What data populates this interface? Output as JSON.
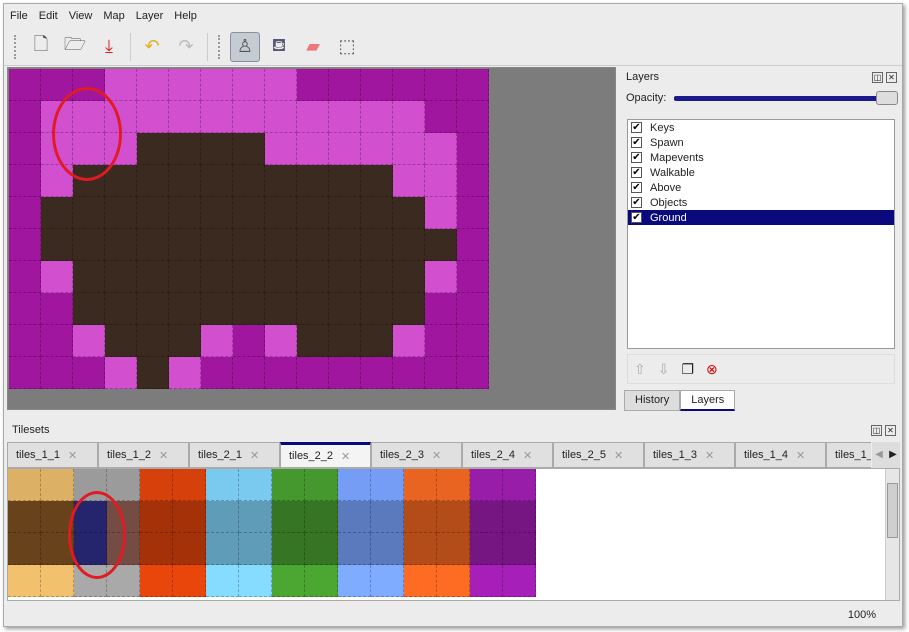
{
  "menu": [
    "File",
    "Edit",
    "View",
    "Map",
    "Layer",
    "Help"
  ],
  "toolbar": [
    {
      "name": "new-icon",
      "glyph": "🗋"
    },
    {
      "name": "open-icon",
      "glyph": "🗁"
    },
    {
      "name": "save-icon",
      "glyph": "⤓"
    },
    {
      "name": "undo-icon",
      "glyph": "↶"
    },
    {
      "name": "redo-icon",
      "glyph": "↷"
    },
    {
      "name": "stamp-brush-icon",
      "glyph": "♙",
      "active": true
    },
    {
      "name": "bucket-fill-icon",
      "glyph": "⛾"
    },
    {
      "name": "eraser-icon",
      "glyph": "▰"
    },
    {
      "name": "rect-select-icon",
      "glyph": "⬚"
    }
  ],
  "map": {
    "rows": [
      "DDDLLLLLLDDDDDD",
      "DLLLLLLLLLLLLDD",
      "DLLLBBBBLLLLLLD",
      "DLBBBBBBBBBBLLD",
      "DBBBBBBBBBBBBLD",
      "DBBBBBBBBBBBBBD",
      "DLBBBBBBBBBBBLD",
      "DDBBBBBBBBBBBDD",
      "DDLBBBLDLBBBLDD",
      "DDDLBLDDDDDDDDD"
    ]
  },
  "layers": {
    "title": "Layers",
    "opacity_label": "Opacity:",
    "opacity": 1.0,
    "items": [
      {
        "label": "Keys",
        "checked": true
      },
      {
        "label": "Spawn",
        "checked": true
      },
      {
        "label": "Mapevents",
        "checked": true
      },
      {
        "label": "Walkable",
        "checked": true
      },
      {
        "label": "Above",
        "checked": true
      },
      {
        "label": "Objects",
        "checked": true
      },
      {
        "label": "Ground",
        "checked": true,
        "selected": true
      }
    ],
    "tabs": [
      "History",
      "Layers"
    ],
    "active_tab": "Layers"
  },
  "tilesets": {
    "title": "Tilesets",
    "tabs": [
      "tiles_1_1",
      "tiles_1_2",
      "tiles_2_1",
      "tiles_2_2",
      "tiles_2_3",
      "tiles_2_4",
      "tiles_2_5",
      "tiles_1_3",
      "tiles_1_4",
      "tiles_1_"
    ],
    "active_tab": "tiles_2_2",
    "colors": [
      "#c9a15c",
      "#8d8d8d",
      "#c23a0a",
      "#6fb7d8",
      "#3f8a2a",
      "#6b8fe0",
      "#d45a1e",
      "#8a1a9a"
    ]
  },
  "status": {
    "zoom": "100%"
  },
  "accent": "#0a0a7c"
}
